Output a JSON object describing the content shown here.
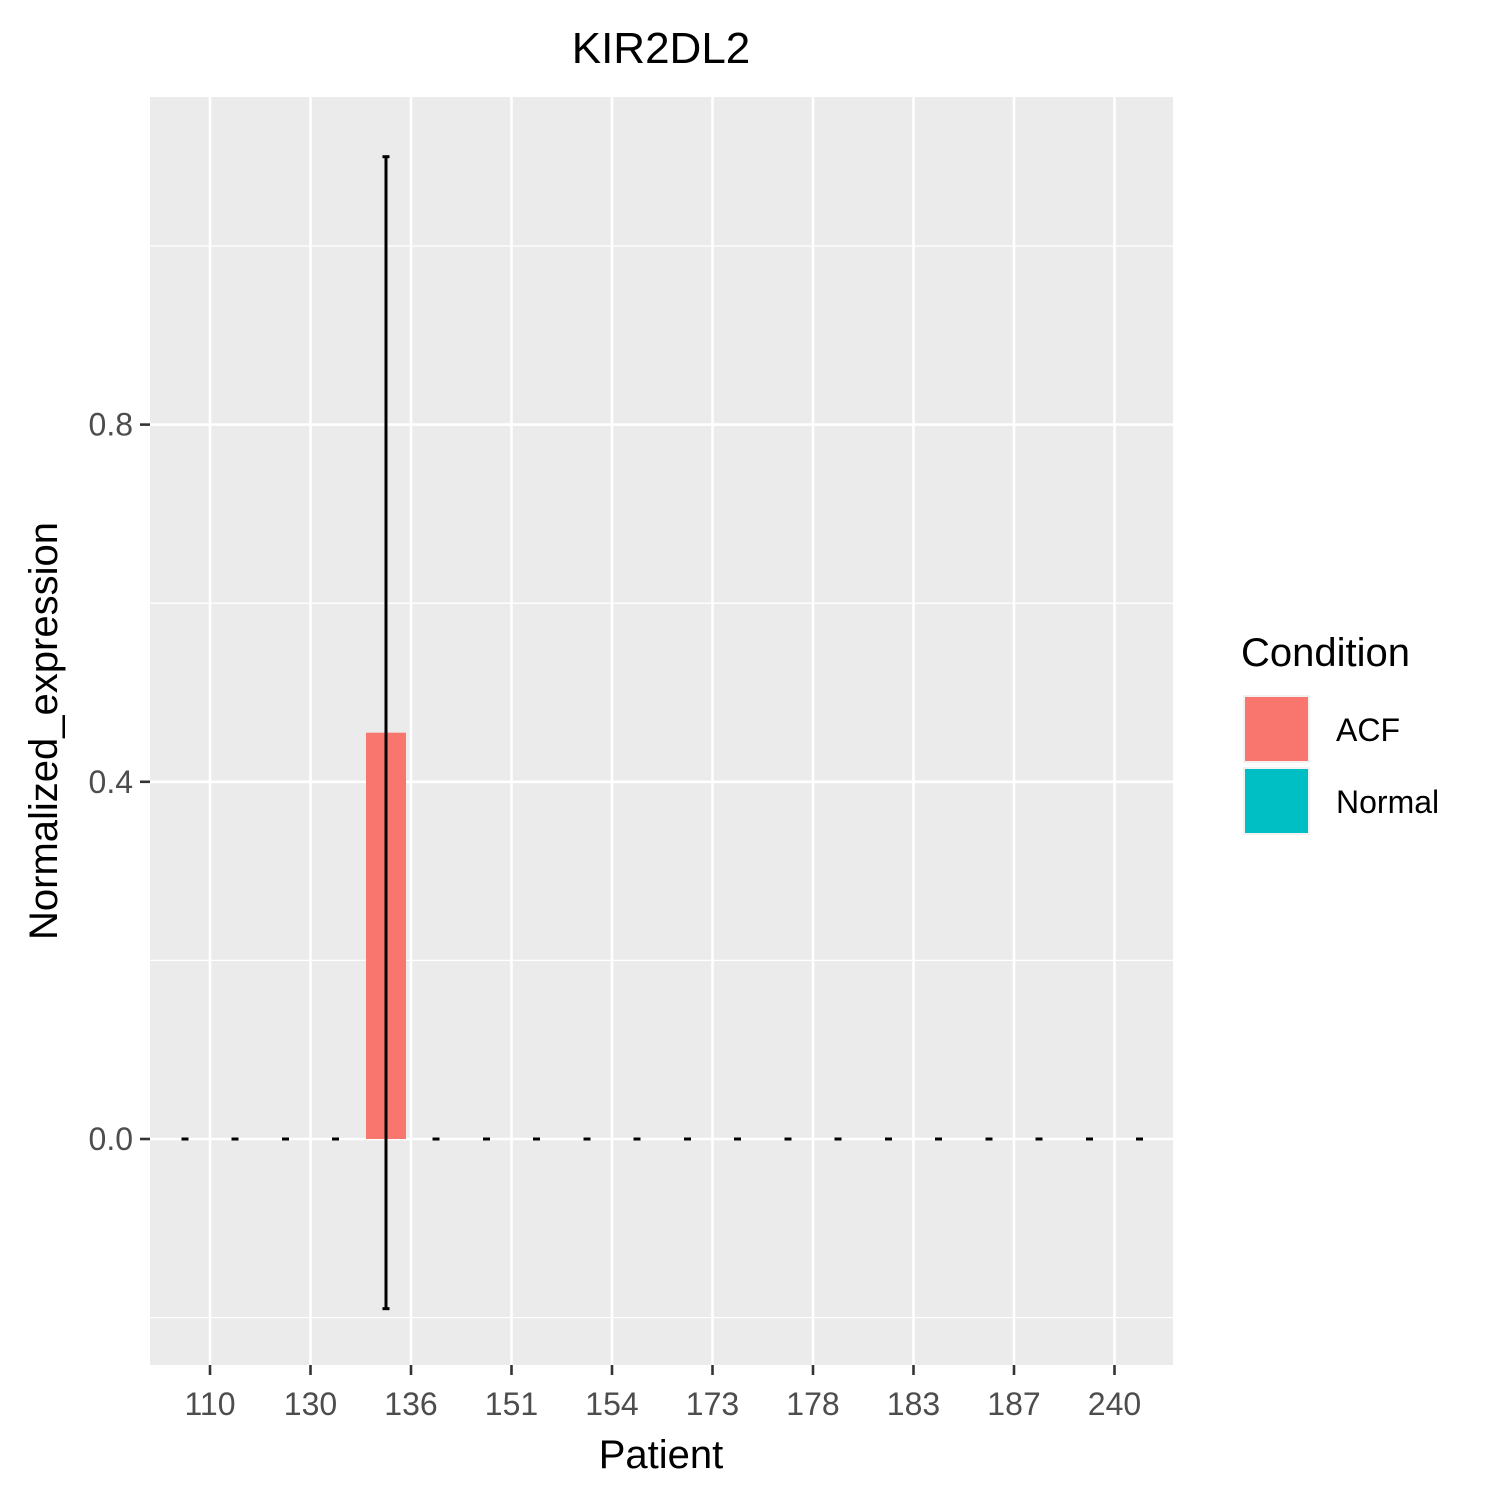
{
  "chart_data": {
    "type": "bar",
    "title": "KIR2DL2",
    "xlabel": "Patient",
    "ylabel": "Normalized_expression",
    "categories": [
      "110",
      "130",
      "136",
      "151",
      "154",
      "173",
      "178",
      "183",
      "187",
      "240"
    ],
    "y_ticks": [
      "0.0",
      "0.4",
      "0.8"
    ],
    "ylim": [
      -0.2,
      1.1
    ],
    "grid": true,
    "legend": {
      "title": "Condition",
      "placement": "right",
      "entries": [
        {
          "name": "ACF",
          "color": "#F8766D"
        },
        {
          "name": "Normal",
          "color": "#00BFC4"
        }
      ]
    },
    "series": [
      {
        "name": "ACF",
        "color": "#F8766D",
        "values": [
          0,
          0,
          0.455,
          0,
          0,
          0,
          0,
          0,
          0,
          0
        ],
        "error_low": [
          0,
          0,
          -0.19,
          0,
          0,
          0,
          0,
          0,
          0,
          0
        ],
        "error_high": [
          0,
          0,
          1.1,
          0,
          0,
          0,
          0,
          0,
          0,
          0
        ]
      },
      {
        "name": "Normal",
        "color": "#00BFC4",
        "values": [
          0,
          0,
          0,
          0,
          0,
          0,
          0,
          0,
          0,
          0
        ],
        "error_low": [
          0,
          0,
          0,
          0,
          0,
          0,
          0,
          0,
          0,
          0
        ],
        "error_high": [
          0,
          0,
          0,
          0,
          0,
          0,
          0,
          0,
          0,
          0
        ]
      }
    ],
    "colors": {
      "panel": "#EBEBEB",
      "grid": "#FFFFFF",
      "errorbar": "#000000"
    }
  }
}
